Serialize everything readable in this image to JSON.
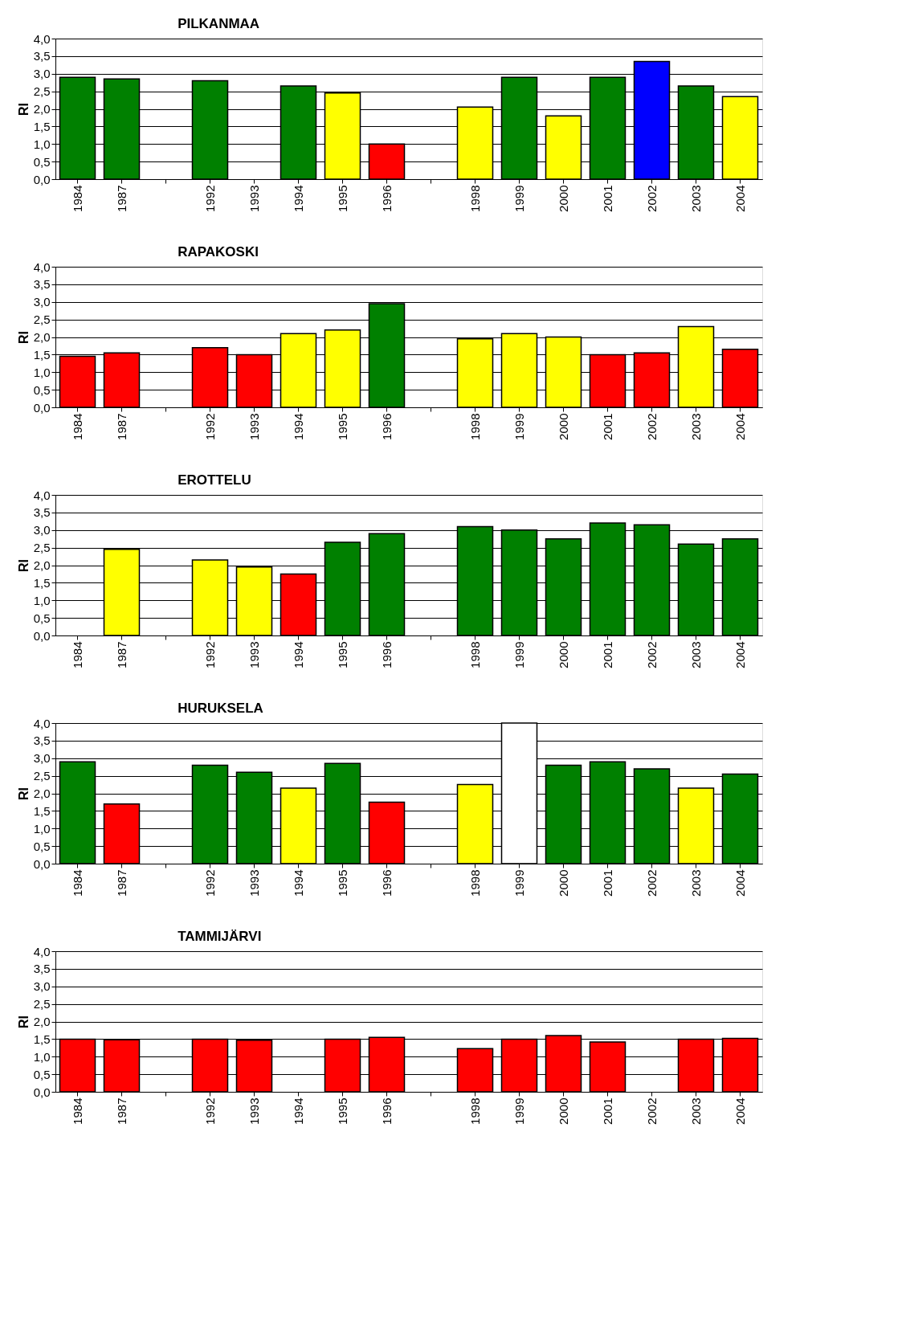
{
  "chart_data": [
    {
      "type": "bar",
      "title": "PILKANMAA",
      "ylabel": "RI",
      "categories": [
        "1984",
        "1987",
        null,
        "1992",
        "1993",
        "1994",
        "1995",
        "1996",
        null,
        "1998",
        "1999",
        "2000",
        "2001",
        "2002",
        "2003",
        "2004"
      ],
      "values": [
        2.9,
        2.85,
        null,
        2.8,
        null,
        2.65,
        2.45,
        1.0,
        null,
        2.05,
        2.9,
        1.8,
        2.9,
        3.35,
        2.65,
        2.35
      ],
      "colors": [
        "#008000",
        "#008000",
        null,
        "#008000",
        null,
        "#008000",
        "#ffff00",
        "#ff0000",
        null,
        "#ffff00",
        "#008000",
        "#ffff00",
        "#008000",
        "#0000ff",
        "#008000",
        "#ffff00"
      ],
      "ylim": [
        0,
        4
      ],
      "yticks": [
        {
          "value": 0,
          "label": "0,0"
        },
        {
          "value": 0.5,
          "label": "0,5"
        },
        {
          "value": 1,
          "label": "1,0"
        },
        {
          "value": 1.5,
          "label": "1,5"
        },
        {
          "value": 2,
          "label": "2,0"
        },
        {
          "value": 2.5,
          "label": "2,5"
        },
        {
          "value": 3,
          "label": "3,0"
        },
        {
          "value": 3.5,
          "label": "3,5"
        },
        {
          "value": 4,
          "label": "4,0"
        }
      ],
      "grid": "y"
    },
    {
      "type": "bar",
      "title": "RAPAKOSKI",
      "ylabel": "RI",
      "categories": [
        "1984",
        "1987",
        null,
        "1992",
        "1993",
        "1994",
        "1995",
        "1996",
        null,
        "1998",
        "1999",
        "2000",
        "2001",
        "2002",
        "2003",
        "2004"
      ],
      "values": [
        1.45,
        1.55,
        null,
        1.7,
        1.5,
        2.1,
        2.2,
        2.95,
        null,
        1.95,
        2.1,
        2.0,
        1.5,
        1.55,
        2.3,
        1.65
      ],
      "colors": [
        "#ff0000",
        "#ff0000",
        null,
        "#ff0000",
        "#ff0000",
        "#ffff00",
        "#ffff00",
        "#008000",
        null,
        "#ffff00",
        "#ffff00",
        "#ffff00",
        "#ff0000",
        "#ff0000",
        "#ffff00",
        "#ff0000"
      ],
      "ylim": [
        0,
        4
      ],
      "yticks": [
        {
          "value": 0,
          "label": "0,0"
        },
        {
          "value": 0.5,
          "label": "0,5"
        },
        {
          "value": 1,
          "label": "1,0"
        },
        {
          "value": 1.5,
          "label": "1,5"
        },
        {
          "value": 2,
          "label": "2,0"
        },
        {
          "value": 2.5,
          "label": "2,5"
        },
        {
          "value": 3,
          "label": "3,0"
        },
        {
          "value": 3.5,
          "label": "3,5"
        },
        {
          "value": 4,
          "label": "4,0"
        }
      ],
      "grid": "y"
    },
    {
      "type": "bar",
      "title": "EROTTELU",
      "ylabel": "RI",
      "categories": [
        "1984",
        "1987",
        null,
        "1992",
        "1993",
        "1994",
        "1995",
        "1996",
        null,
        "1998",
        "1999",
        "2000",
        "2001",
        "2002",
        "2003",
        "2004"
      ],
      "values": [
        null,
        2.45,
        null,
        2.15,
        1.95,
        1.75,
        2.65,
        2.9,
        null,
        3.1,
        3.0,
        2.75,
        3.2,
        3.15,
        2.6,
        2.75
      ],
      "colors": [
        null,
        "#ffff00",
        null,
        "#ffff00",
        "#ffff00",
        "#ff0000",
        "#008000",
        "#008000",
        null,
        "#008000",
        "#008000",
        "#008000",
        "#008000",
        "#008000",
        "#008000",
        "#008000"
      ],
      "ylim": [
        0,
        4
      ],
      "yticks": [
        {
          "value": 0,
          "label": "0,0"
        },
        {
          "value": 0.5,
          "label": "0,5"
        },
        {
          "value": 1,
          "label": "1,0"
        },
        {
          "value": 1.5,
          "label": "1,5"
        },
        {
          "value": 2,
          "label": "2,0"
        },
        {
          "value": 2.5,
          "label": "2,5"
        },
        {
          "value": 3,
          "label": "3,0"
        },
        {
          "value": 3.5,
          "label": "3,5"
        },
        {
          "value": 4,
          "label": "4,0"
        }
      ],
      "grid": "y"
    },
    {
      "type": "bar",
      "title": "HURUKSELA",
      "ylabel": "RI",
      "categories": [
        "1984",
        "1987",
        null,
        "1992",
        "1993",
        "1994",
        "1995",
        "1996",
        null,
        "1998",
        "1999",
        "2000",
        "2001",
        "2002",
        "2003",
        "2004"
      ],
      "values": [
        2.9,
        1.7,
        null,
        2.8,
        2.6,
        2.15,
        2.85,
        1.75,
        null,
        2.25,
        4.0,
        2.8,
        2.9,
        2.7,
        2.15,
        2.55
      ],
      "colors": [
        "#008000",
        "#ff0000",
        null,
        "#008000",
        "#008000",
        "#ffff00",
        "#008000",
        "#ff0000",
        null,
        "#ffff00",
        "#ffffff",
        "#008000",
        "#008000",
        "#008000",
        "#ffff00",
        "#008000"
      ],
      "ylim": [
        0,
        4
      ],
      "yticks": [
        {
          "value": 0,
          "label": "0,0"
        },
        {
          "value": 0.5,
          "label": "0,5"
        },
        {
          "value": 1,
          "label": "1,0"
        },
        {
          "value": 1.5,
          "label": "1,5"
        },
        {
          "value": 2,
          "label": "2,0"
        },
        {
          "value": 2.5,
          "label": "2,5"
        },
        {
          "value": 3,
          "label": "3,0"
        },
        {
          "value": 3.5,
          "label": "3,5"
        },
        {
          "value": 4,
          "label": "4,0"
        }
      ],
      "grid": "y"
    },
    {
      "type": "bar",
      "title": "TAMMIJÄRVI",
      "ylabel": "RI",
      "categories": [
        "1984",
        "1987",
        null,
        "1992",
        "1993",
        "1994",
        "1995",
        "1996",
        null,
        "1998",
        "1999",
        "2000",
        "2001",
        "2002",
        "2003",
        "2004"
      ],
      "values": [
        1.5,
        1.48,
        null,
        1.5,
        1.47,
        null,
        1.5,
        1.55,
        null,
        1.23,
        1.5,
        1.6,
        1.42,
        null,
        1.5,
        1.52
      ],
      "colors": [
        "#ff0000",
        "#ff0000",
        null,
        "#ff0000",
        "#ff0000",
        null,
        "#ff0000",
        "#ff0000",
        null,
        "#ff0000",
        "#ff0000",
        "#ff0000",
        "#ff0000",
        null,
        "#ff0000",
        "#ff0000"
      ],
      "ylim": [
        0,
        4
      ],
      "yticks": [
        {
          "value": 0,
          "label": "0,0"
        },
        {
          "value": 0.5,
          "label": "0,5"
        },
        {
          "value": 1,
          "label": "1,0"
        },
        {
          "value": 1.5,
          "label": "1,5"
        },
        {
          "value": 2,
          "label": "2,0"
        },
        {
          "value": 2.5,
          "label": "2,5"
        },
        {
          "value": 3,
          "label": "3,0"
        },
        {
          "value": 3.5,
          "label": "3,5"
        },
        {
          "value": 4,
          "label": "4,0"
        }
      ],
      "grid": "y"
    }
  ]
}
